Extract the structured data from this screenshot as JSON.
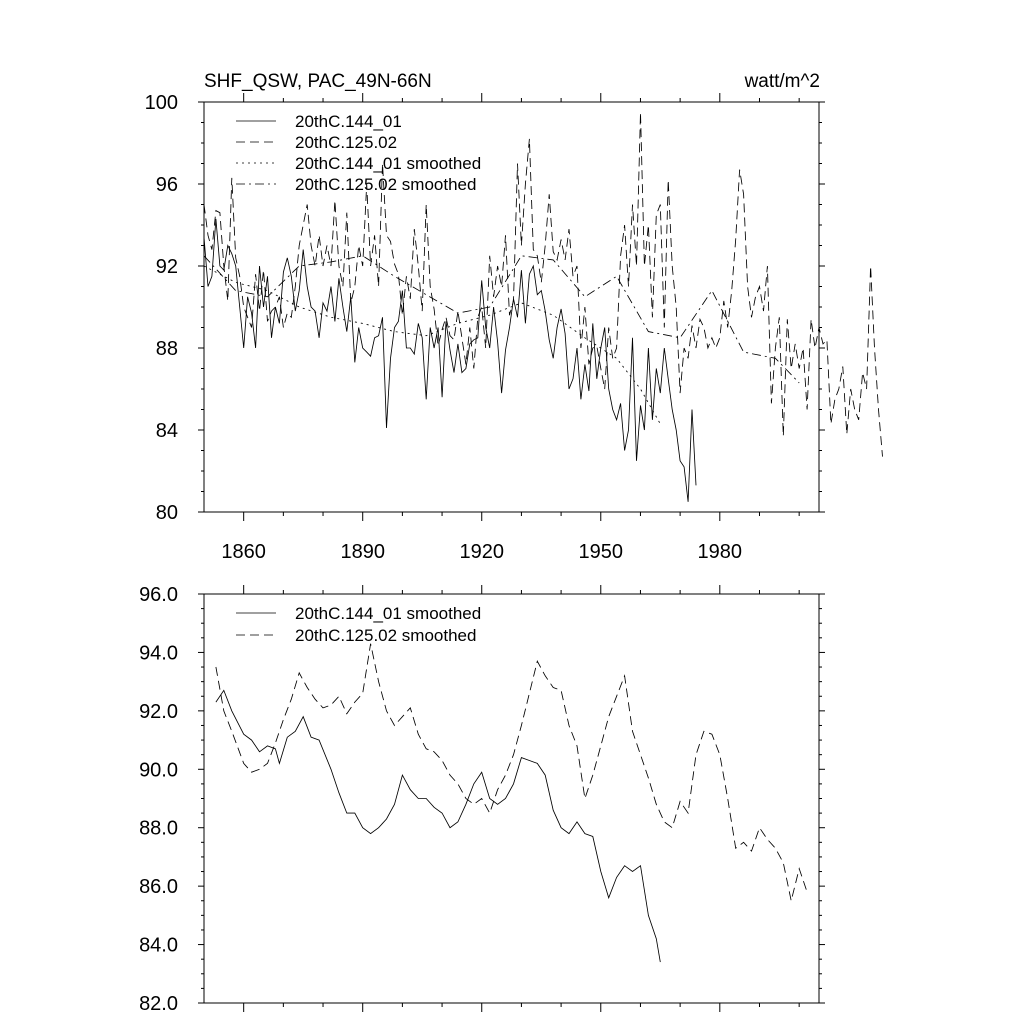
{
  "chart_data": [
    {
      "type": "line",
      "title": "SHF_QSW, PAC_49N-66N",
      "units": "watt/m^2",
      "xlim": [
        1850,
        2005
      ],
      "ylim": [
        80,
        100
      ],
      "x_ticks": [
        1860,
        1890,
        1920,
        1950,
        1980
      ],
      "x_tick_labels": [
        "1860",
        "1890",
        "1920",
        "1950",
        "1980"
      ],
      "y_ticks": [
        80,
        84,
        88,
        92,
        96,
        100
      ],
      "y_tick_labels": [
        "80",
        "84",
        "88",
        "92",
        "96",
        "100"
      ],
      "legend": [
        "20thC.144_01",
        "20thC.125.02",
        "20thC.144_01 smoothed",
        "20thC.125.02 smoothed"
      ],
      "legend_position": "top-left",
      "series": [
        {
          "name": "20thC.144_01",
          "style": "solid",
          "x_start": 1850,
          "values": [
            93.4,
            91.0,
            91.5,
            94.3,
            92.0,
            91.8,
            93.0,
            92.6,
            92.0,
            90.0,
            88.0,
            90.5,
            89.7,
            88.0,
            92.0,
            90.0,
            91.5,
            88.5,
            90.0,
            89.2,
            91.7,
            92.4,
            91.5,
            89.8,
            90.8,
            92.8,
            91.0,
            90.0,
            89.8,
            88.5,
            90.2,
            89.8,
            91.0,
            89.3,
            91.4,
            90.0,
            88.8,
            90.5,
            87.3,
            89.0,
            88.0,
            87.8,
            87.6,
            88.5,
            88.6,
            89.5,
            84.1,
            87.5,
            89.0,
            89.3,
            90.8,
            88.0,
            88.0,
            87.7,
            89.2,
            88.5,
            85.5,
            89.0,
            88.0,
            89.0,
            85.6,
            89.3,
            87.9,
            86.8,
            88.2,
            86.8,
            87.0,
            88.2,
            88.4,
            88.5,
            91.3,
            89.0,
            88.0,
            90.0,
            88.3,
            85.8,
            87.9,
            89.0,
            90.4,
            89.5,
            91.8,
            89.2,
            91.6,
            92.0,
            90.6,
            90.8,
            89.8,
            88.4,
            87.5,
            89.0,
            89.9,
            88.7,
            86.0,
            86.5,
            88.0,
            85.5,
            87.2,
            85.9,
            89.2,
            86.5,
            88.0,
            89.0,
            86.0,
            85.0,
            84.5,
            85.3,
            83.0,
            84.0,
            88.5,
            82.5,
            85.2,
            84.0,
            88.0,
            84.5,
            87.0,
            85.8,
            88.0,
            86.5,
            85.0,
            84.0,
            82.5,
            82.2,
            80.5,
            85.0,
            81.3
          ]
        },
        {
          "name": "20thC.125.02",
          "style": "dashed",
          "x_start": 1850,
          "values": [
            95.0,
            93.5,
            92.8,
            94.7,
            94.6,
            92.0,
            90.3,
            96.3,
            92.4,
            91.5,
            90.0,
            89.5,
            89.0,
            91.6,
            89.8,
            91.8,
            89.3,
            89.8,
            90.0,
            90.5,
            89.0,
            89.7,
            89.5,
            91.0,
            93.0,
            94.0,
            95.0,
            93.0,
            92.0,
            93.5,
            92.0,
            93.0,
            92.0,
            95.2,
            92.0,
            91.0,
            94.6,
            90.2,
            91.0,
            93.0,
            92.0,
            96.0,
            92.0,
            93.5,
            91.0,
            97.0,
            93.5,
            93.2,
            92.1,
            91.6,
            89.6,
            91.5,
            90.4,
            93.8,
            92.0,
            89.8,
            95.0,
            91.0,
            89.9,
            88.1,
            88.9,
            89.5,
            88.6,
            88.4,
            89.8,
            88.5,
            87.2,
            89.0,
            87.0,
            89.5,
            90.0,
            88.0,
            92.5,
            90.5,
            92.0,
            91.0,
            93.5,
            89.6,
            90.3,
            97.0,
            93.0,
            96.0,
            98.2,
            92.8,
            92.5,
            91.2,
            93.0,
            95.5,
            92.7,
            92.3,
            93.3,
            92.3,
            93.8,
            91.5,
            92.0,
            88.0,
            90.0,
            87.2,
            88.0,
            88.1,
            87.0,
            86.0,
            89.0,
            87.5,
            88.0,
            92.5,
            94.0,
            91.0,
            95.0,
            92.0,
            99.5,
            92.0,
            94.0,
            89.5,
            94.5,
            95.0,
            89.0,
            96.2,
            92.0,
            90.0,
            85.8,
            88.0,
            87.5,
            89.1,
            88.0,
            89.4,
            89.0,
            88.0,
            88.5,
            88.0,
            88.5,
            90.3,
            89.0,
            90.8,
            93.3,
            96.7,
            95.5,
            91.0,
            89.5,
            90.5,
            91.0,
            89.8,
            92.0,
            85.3,
            88.0,
            89.5,
            83.7,
            89.4,
            87.0,
            88.2,
            87.0,
            88.0,
            85.0,
            89.4,
            88.0,
            89.0,
            88.2,
            88.4,
            84.3,
            85.5,
            86.0,
            87.1,
            83.8,
            86.0,
            85.0,
            84.5,
            86.8,
            86.0,
            92.0,
            88.0,
            85.0,
            82.7
          ]
        },
        {
          "name": "20thC.144_01 smoothed",
          "style": "dotted",
          "x": [
            1850,
            1858,
            1866,
            1874,
            1882,
            1890,
            1898,
            1906,
            1914,
            1922,
            1930,
            1938,
            1946,
            1954,
            1960,
            1965
          ],
          "values": [
            92.0,
            91.2,
            90.8,
            90.0,
            89.5,
            89.2,
            88.8,
            88.6,
            89.2,
            89.6,
            90.2,
            89.6,
            88.5,
            87.5,
            86.0,
            84.3
          ]
        },
        {
          "name": "20thC.125.02 smoothed",
          "style": "dashdot",
          "x": [
            1850,
            1858,
            1866,
            1874,
            1882,
            1890,
            1898,
            1906,
            1914,
            1922,
            1930,
            1938,
            1946,
            1954,
            1962,
            1970,
            1978,
            1986,
            1994,
            2000
          ],
          "values": [
            92.5,
            90.8,
            90.5,
            92.0,
            92.2,
            92.5,
            91.5,
            90.6,
            89.7,
            90.0,
            92.5,
            92.3,
            90.5,
            91.5,
            88.8,
            88.5,
            90.8,
            87.8,
            87.5,
            86.3
          ]
        }
      ]
    },
    {
      "type": "line",
      "title": "",
      "xlim": [
        1850,
        2005
      ],
      "ylim": [
        82,
        96
      ],
      "y_ticks": [
        82,
        84,
        86,
        88,
        90,
        92,
        94,
        96
      ],
      "y_tick_labels": [
        "82.0",
        "84.0",
        "86.0",
        "88.0",
        "90.0",
        "92.0",
        "94.0",
        "96.0"
      ],
      "legend": [
        "20thC.144_01 smoothed",
        "20thC.125.02 smoothed"
      ],
      "legend_position": "top-left",
      "series": [
        {
          "name": "20thC.144_01 smoothed",
          "style": "solid",
          "x": [
            1853,
            1855,
            1857,
            1860,
            1862,
            1864,
            1866,
            1868,
            1869,
            1871,
            1873,
            1875,
            1877,
            1879,
            1882,
            1884,
            1886,
            1888,
            1890,
            1892,
            1894,
            1896,
            1898,
            1900,
            1902,
            1904,
            1906,
            1908,
            1910,
            1912,
            1914,
            1916,
            1918,
            1920,
            1922,
            1924,
            1926,
            1928,
            1930,
            1932,
            1934,
            1936,
            1938,
            1940,
            1942,
            1944,
            1946,
            1948,
            1950,
            1952,
            1954,
            1956,
            1958,
            1960,
            1962,
            1964,
            1965
          ],
          "values": [
            92.3,
            92.7,
            92.0,
            91.2,
            91.0,
            90.6,
            90.8,
            90.7,
            90.2,
            91.1,
            91.3,
            91.8,
            91.1,
            91.0,
            90.0,
            89.2,
            88.5,
            88.5,
            88.0,
            87.8,
            88.0,
            88.3,
            88.8,
            89.8,
            89.3,
            89.0,
            89.0,
            88.7,
            88.5,
            88.0,
            88.2,
            88.8,
            89.5,
            89.9,
            89.0,
            88.8,
            89.0,
            89.5,
            90.4,
            90.3,
            90.2,
            89.8,
            88.6,
            88.0,
            87.8,
            88.2,
            87.8,
            87.7,
            86.5,
            85.6,
            86.3,
            86.7,
            86.5,
            86.7,
            85.0,
            84.2,
            83.4
          ]
        },
        {
          "name": "20thC.125.02 smoothed",
          "style": "dashed",
          "x": [
            1853,
            1855,
            1857,
            1860,
            1862,
            1864,
            1866,
            1868,
            1870,
            1872,
            1874,
            1876,
            1878,
            1880,
            1882,
            1884,
            1886,
            1888,
            1890,
            1892,
            1894,
            1896,
            1898,
            1900,
            1902,
            1904,
            1906,
            1908,
            1910,
            1912,
            1914,
            1916,
            1918,
            1920,
            1922,
            1924,
            1926,
            1928,
            1930,
            1932,
            1934,
            1936,
            1938,
            1940,
            1942,
            1944,
            1946,
            1948,
            1950,
            1952,
            1954,
            1956,
            1958,
            1960,
            1962,
            1964,
            1966,
            1968,
            1970,
            1972,
            1974,
            1976,
            1978,
            1980,
            1982,
            1984,
            1986,
            1988,
            1990,
            1992,
            1994,
            1996,
            1998,
            2000,
            2002
          ],
          "values": [
            93.5,
            92.0,
            91.3,
            90.2,
            89.9,
            90.0,
            90.2,
            90.9,
            91.7,
            92.4,
            93.3,
            92.8,
            92.4,
            92.1,
            92.2,
            92.5,
            91.9,
            92.3,
            92.6,
            94.3,
            93.0,
            92.0,
            91.5,
            91.8,
            92.1,
            91.2,
            90.7,
            90.6,
            90.3,
            89.8,
            89.5,
            89.0,
            88.8,
            89.0,
            88.5,
            89.3,
            89.8,
            90.5,
            91.5,
            92.6,
            93.7,
            93.2,
            92.8,
            92.7,
            91.5,
            90.8,
            89.0,
            89.8,
            90.8,
            91.8,
            92.5,
            93.2,
            91.3,
            90.5,
            89.7,
            88.8,
            88.2,
            88.0,
            88.9,
            88.5,
            90.5,
            91.3,
            91.2,
            90.5,
            89.0,
            87.3,
            87.5,
            87.2,
            88.0,
            87.6,
            87.3,
            86.8,
            85.5,
            86.6,
            85.8
          ]
        }
      ]
    }
  ]
}
